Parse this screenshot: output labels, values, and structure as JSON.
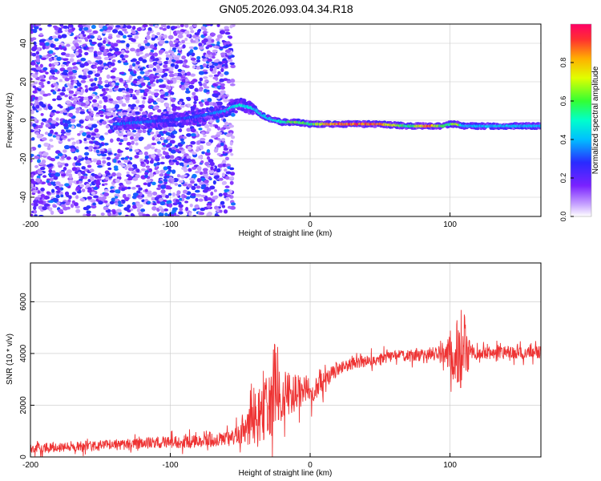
{
  "title": "GN05.2026.093.04.34.R18",
  "colors": {
    "snr_line": "#ee3333",
    "spectral_low": "#9933ff",
    "spectral_high": "#ff0033",
    "axis": "#000000",
    "grid": "#c8c8c8"
  },
  "chart_data": [
    {
      "type": "heatmap",
      "title": "",
      "xlabel": "Height of straight line (km)",
      "ylabel": "Frequency (Hz)",
      "xlim": [
        -200,
        165
      ],
      "ylim": [
        -50,
        50
      ],
      "xticks": [
        -200,
        -100,
        0,
        100
      ],
      "yticks": [
        -40,
        -20,
        0,
        20,
        40
      ],
      "grid": true,
      "colorbar": {
        "label": "Normalized spectral amplitude",
        "range": [
          0,
          1
        ],
        "ticks": [
          0.0,
          0.2,
          0.4,
          0.6,
          0.8
        ],
        "tick_labels": [
          "0.0",
          "0.2",
          "0.4",
          "0.6",
          "0.8"
        ],
        "colormap": "rainbow"
      },
      "ridge": {
        "x": [
          -140,
          -120,
          -100,
          -80,
          -60,
          -55,
          -50,
          -45,
          -40,
          -35,
          -30,
          -20,
          -10,
          0,
          10,
          30,
          50,
          70,
          85,
          95,
          100,
          105,
          110,
          130,
          165
        ],
        "y": [
          -2,
          -1,
          0,
          2,
          5,
          7,
          8,
          7,
          6,
          3,
          1,
          -1,
          -1,
          -2,
          -2,
          -2,
          -2,
          -3,
          -3,
          -3,
          -2,
          -2,
          -3,
          -3,
          -3
        ],
        "amplitude": [
          0.35,
          0.35,
          0.3,
          0.35,
          0.4,
          0.5,
          0.5,
          0.45,
          0.5,
          0.45,
          0.45,
          0.55,
          0.7,
          0.55,
          0.85,
          0.95,
          0.95,
          0.55,
          0.95,
          0.6,
          0.6,
          0.75,
          0.45,
          0.45,
          0.45
        ]
      }
    },
    {
      "type": "line",
      "title": "",
      "xlabel": "Height of straight line (km)",
      "ylabel": "SNR (10 * v/v)",
      "xlim": [
        -200,
        165
      ],
      "ylim": [
        0,
        7500
      ],
      "xticks": [
        -200,
        -100,
        0,
        100
      ],
      "yticks": [
        0,
        2000,
        4000,
        6000
      ],
      "grid": true,
      "series": [
        {
          "x": [
            -200,
            -180,
            -160,
            -140,
            -120,
            -100,
            -80,
            -70,
            -60,
            -55,
            -50,
            -45,
            -40,
            -35,
            -30,
            -25,
            -20,
            -15,
            -10,
            -5,
            0,
            5,
            10,
            15,
            20,
            30,
            40,
            50,
            60,
            70,
            80,
            90,
            95,
            100,
            105,
            108,
            110,
            112,
            115,
            120,
            130,
            140,
            150,
            165
          ],
          "values": [
            350,
            380,
            420,
            460,
            520,
            580,
            600,
            650,
            700,
            780,
            900,
            1100,
            1300,
            1600,
            1900,
            2100,
            2300,
            2400,
            2500,
            2600,
            2600,
            2700,
            2900,
            3200,
            3400,
            3600,
            3700,
            3800,
            3900,
            3900,
            3950,
            4000,
            4000,
            3950,
            4000,
            4100,
            4000,
            3950,
            4000,
            4000,
            4050,
            4050,
            4000,
            4050
          ],
          "spread": [
            250,
            250,
            250,
            250,
            280,
            300,
            300,
            330,
            350,
            400,
            500,
            800,
            1300,
            1500,
            1500,
            1500,
            1300,
            1100,
            900,
            800,
            700,
            600,
            500,
            400,
            350,
            300,
            300,
            300,
            300,
            300,
            300,
            350,
            600,
            900,
            1700,
            2000,
            2000,
            1200,
            400,
            300,
            300,
            300,
            300,
            300
          ]
        }
      ]
    }
  ]
}
